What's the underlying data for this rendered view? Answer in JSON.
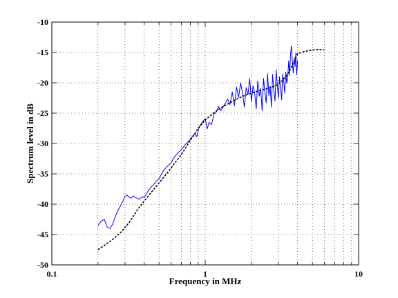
{
  "chart_data": {
    "type": "line",
    "xlabel": "Frequency in MHz",
    "ylabel": "Spectrum level in dB",
    "xscale": "log",
    "xlim": [
      0.1,
      10
    ],
    "ylim": [
      -50,
      -10
    ],
    "xticks": [
      0.1,
      1,
      10
    ],
    "xtick_labels": [
      "0.1",
      "1",
      "10"
    ],
    "yticks": [
      -50,
      -45,
      -40,
      -35,
      -30,
      -25,
      -20,
      -15,
      -10
    ],
    "ytick_labels": [
      "-50",
      "-45",
      "-40",
      "-35",
      "-30",
      "-25",
      "-20",
      "-15",
      "-10"
    ],
    "grid": true,
    "legend": "none",
    "series": [
      {
        "style": "solid",
        "color": "#0000ff",
        "x": [
          0.2,
          0.21,
          0.22,
          0.23,
          0.24,
          0.25,
          0.26,
          0.27,
          0.28,
          0.29,
          0.3,
          0.31,
          0.32,
          0.33,
          0.34,
          0.35,
          0.36,
          0.37,
          0.38,
          0.39,
          0.4,
          0.42,
          0.44,
          0.46,
          0.48,
          0.5,
          0.52,
          0.54,
          0.56,
          0.58,
          0.6,
          0.62,
          0.64,
          0.66,
          0.68,
          0.7,
          0.72,
          0.74,
          0.76,
          0.78,
          0.8,
          0.82,
          0.84,
          0.86,
          0.88,
          0.9,
          0.92,
          0.95,
          1.0,
          1.03,
          1.06,
          1.1,
          1.14,
          1.18,
          1.22,
          1.26,
          1.3,
          1.35,
          1.4,
          1.45,
          1.5,
          1.55,
          1.6,
          1.65,
          1.7,
          1.75,
          1.8,
          1.85,
          1.9,
          1.95,
          2.0,
          2.05,
          2.1,
          2.15,
          2.2,
          2.25,
          2.3,
          2.35,
          2.4,
          2.45,
          2.5,
          2.55,
          2.6,
          2.65,
          2.7,
          2.75,
          2.8,
          2.85,
          2.9,
          2.95,
          3.0,
          3.05,
          3.1,
          3.15,
          3.2,
          3.25,
          3.3,
          3.35,
          3.4,
          3.45,
          3.5,
          3.55,
          3.6,
          3.65,
          3.7,
          3.75,
          3.8,
          3.85,
          3.9,
          3.95,
          4.0
        ],
        "y": [
          -43.5,
          -42.8,
          -42.5,
          -43.8,
          -44.0,
          -43.2,
          -42.0,
          -41.0,
          -40.3,
          -39.5,
          -38.7,
          -38.5,
          -38.9,
          -39.0,
          -38.6,
          -38.9,
          -39.0,
          -39.2,
          -39.0,
          -38.8,
          -38.9,
          -38.0,
          -37.3,
          -36.8,
          -36.2,
          -35.8,
          -35.0,
          -34.3,
          -33.9,
          -33.5,
          -33.2,
          -32.5,
          -32.0,
          -31.6,
          -31.3,
          -31.0,
          -30.6,
          -30.2,
          -29.9,
          -29.6,
          -29.3,
          -28.9,
          -28.6,
          -28.4,
          -28.9,
          -27.9,
          -27.1,
          -26.6,
          -25.9,
          -27.6,
          -26.5,
          -26.9,
          -25.2,
          -24.8,
          -23.9,
          -24.6,
          -24.1,
          -23.4,
          -22.7,
          -23.6,
          -21.5,
          -23.8,
          -20.7,
          -22.4,
          -20.0,
          -21.7,
          -24.0,
          -20.8,
          -22.0,
          -19.3,
          -23.1,
          -20.5,
          -21.6,
          -24.3,
          -19.7,
          -22.2,
          -20.9,
          -24.6,
          -19.3,
          -21.7,
          -23.3,
          -18.5,
          -22.1,
          -20.6,
          -24.0,
          -18.6,
          -21.2,
          -23.0,
          -17.9,
          -20.3,
          -22.5,
          -19.0,
          -21.0,
          -22.8,
          -18.6,
          -19.8,
          -21.7,
          -18.2,
          -20.1,
          -19.2,
          -16.4,
          -18.8,
          -15.3,
          -13.9,
          -16.7,
          -18.4,
          -15.9,
          -17.3,
          -15.1,
          -18.7,
          -16.3
        ]
      },
      {
        "style": "dashed",
        "color": "#000000",
        "x": [
          0.2,
          0.22,
          0.25,
          0.28,
          0.32,
          0.36,
          0.4,
          0.45,
          0.5,
          0.56,
          0.63,
          0.7,
          0.8,
          0.9,
          1.0,
          1.12,
          1.25,
          1.4,
          1.6,
          1.8,
          2.0,
          2.25,
          2.5,
          2.8,
          3.0,
          3.2,
          3.4,
          3.6,
          3.8,
          4.0,
          4.5,
          5.0,
          5.5,
          6.0
        ],
        "y": [
          -47.5,
          -46.8,
          -45.8,
          -44.7,
          -43.0,
          -41.0,
          -39.5,
          -37.9,
          -36.5,
          -35.0,
          -33.3,
          -31.8,
          -29.5,
          -27.5,
          -26.1,
          -25.1,
          -24.2,
          -23.5,
          -22.7,
          -22.1,
          -21.7,
          -21.3,
          -21.0,
          -20.6,
          -20.2,
          -19.6,
          -18.8,
          -17.7,
          -16.3,
          -15.2,
          -14.8,
          -14.6,
          -14.5,
          -14.6
        ]
      }
    ]
  }
}
